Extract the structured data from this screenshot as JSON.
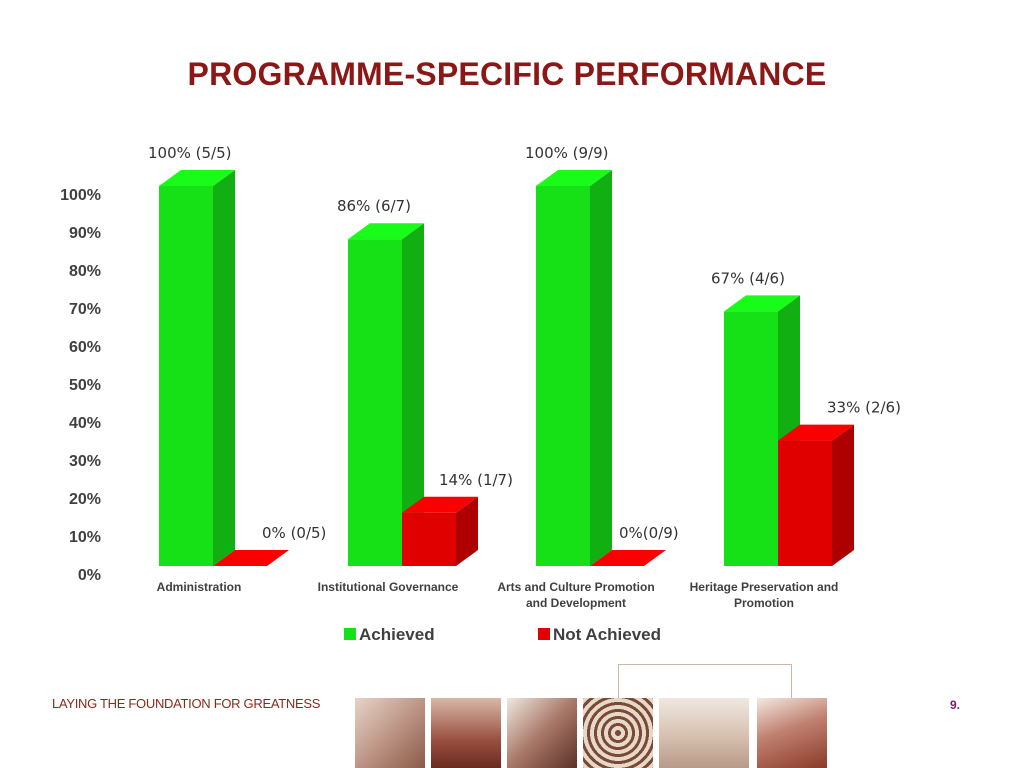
{
  "slide": {
    "title": "PROGRAMME-SPECIFIC PERFORMANCE",
    "footer_tagline": "LAYING THE FOUNDATION FOR GREATNESS",
    "page_number": "9."
  },
  "colors": {
    "title": "#8b1717",
    "achieved": "#16e016",
    "not_achieved": "#e00000"
  },
  "footer_images": [
    "braille-reading-photo",
    "family-silhouette-photo",
    "film-strip-photo",
    "woven-basket-photo",
    "ballet-feet-photo",
    "saxophone-player-photo"
  ],
  "chart_data": {
    "type": "bar",
    "title": "PROGRAMME-SPECIFIC PERFORMANCE",
    "xlabel": "",
    "ylabel": "",
    "ylim": [
      0,
      100
    ],
    "y_tick_labels": [
      "0%",
      "10%",
      "20%",
      "30%",
      "40%",
      "50%",
      "60%",
      "70%",
      "80%",
      "90%",
      "100%"
    ],
    "categories": [
      [
        "Administration"
      ],
      [
        "Institutional Governance"
      ],
      [
        "Arts and Culture Promotion",
        "and Development"
      ],
      [
        "Heritage Preservation and",
        "Promotion"
      ]
    ],
    "series": [
      {
        "name": "Achieved",
        "color": "#16e016",
        "values": [
          100,
          86,
          100,
          67
        ],
        "labels": [
          "100% (5/5)",
          "86% (6/7)",
          "100% (9/9)",
          "67% (4/6)"
        ]
      },
      {
        "name": "Not Achieved",
        "color": "#e00000",
        "values": [
          0,
          14,
          0,
          33
        ],
        "labels": [
          "0% (0/5)",
          "14% (1/7)",
          "0%(0/9)",
          "33% (2/6)"
        ]
      }
    ],
    "grid": false,
    "legend_position": "bottom",
    "style": "3d-bar"
  }
}
